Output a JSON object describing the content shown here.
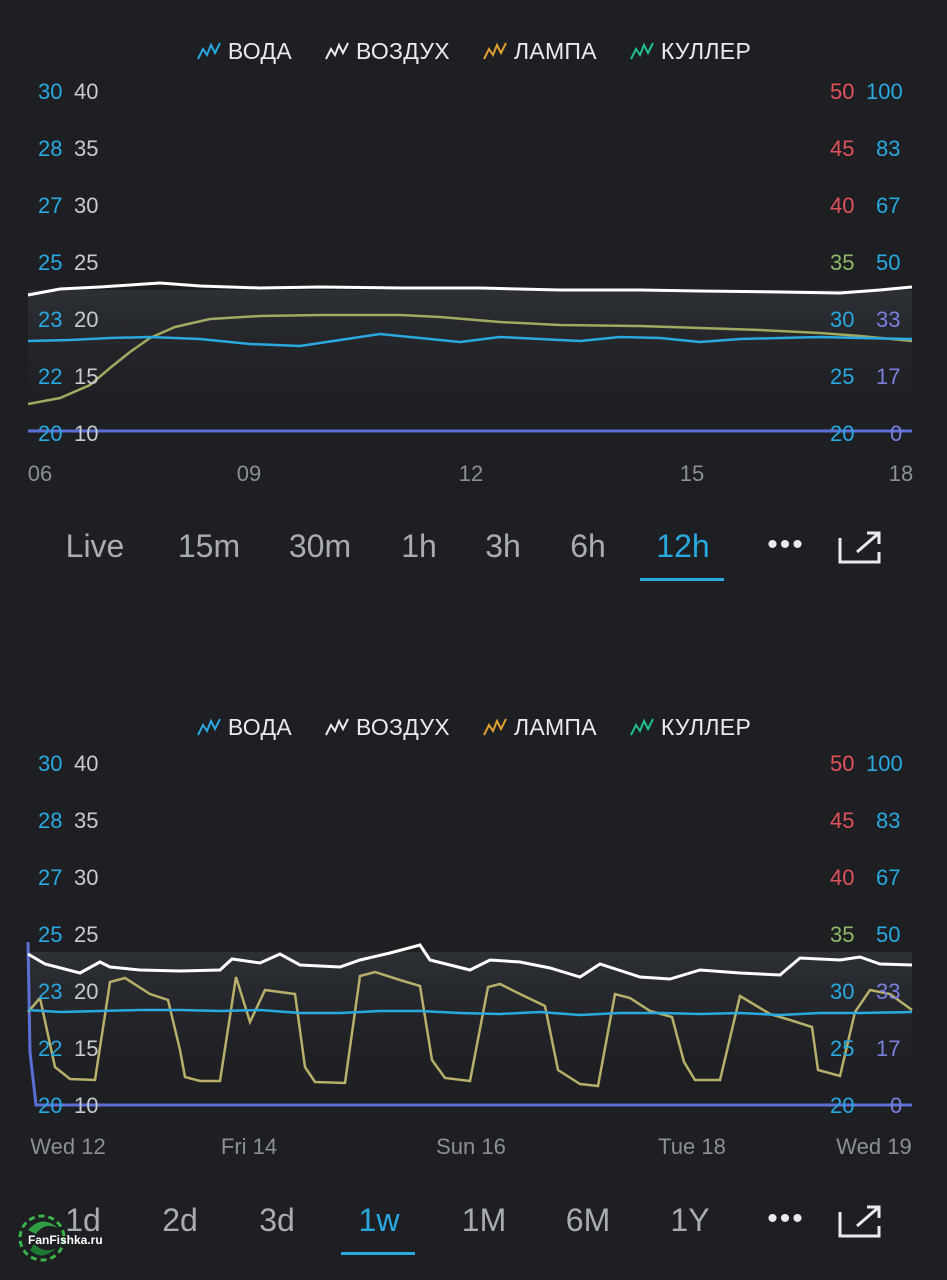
{
  "legend": [
    {
      "label": "ВОДА",
      "color": "#29a9e0",
      "icon": "chart-line-icon"
    },
    {
      "label": "ВОЗДУХ",
      "color": "#e8eaed",
      "icon": "chart-line-icon"
    },
    {
      "label": "ЛАМПА",
      "color": "#e0a030",
      "icon": "chart-line-icon"
    },
    {
      "label": "КУЛЛЕР",
      "color": "#1fbf8f",
      "icon": "chart-line-icon"
    }
  ],
  "axes": {
    "left_water": [
      "30",
      "28",
      "27",
      "25",
      "23",
      "22",
      "20"
    ],
    "left_air": [
      "40",
      "35",
      "30",
      "25",
      "20",
      "15",
      "10"
    ],
    "right_lamp": [
      "50",
      "45",
      "40",
      "35",
      "30",
      "25",
      "20"
    ],
    "right_cooler": [
      "100",
      "83",
      "67",
      "50",
      "33",
      "17",
      "0"
    ]
  },
  "top_chart": {
    "x_labels": [
      "06",
      "09",
      "12",
      "15",
      "18"
    ],
    "ranges": [
      "Live",
      "15m",
      "30m",
      "1h",
      "3h",
      "6h",
      "12h"
    ],
    "active_range": "12h"
  },
  "bottom_chart": {
    "x_labels": [
      "Wed 12",
      "Fri 14",
      "Sun 16",
      "Tue 18",
      "Wed 19"
    ],
    "ranges": [
      "1d",
      "2d",
      "3d",
      "1w",
      "1M",
      "6M",
      "1Y"
    ],
    "active_range": "1w"
  },
  "more_icon": "more-horizontal-icon",
  "expand_icon": "external-open-icon",
  "logo": {
    "text": "FanFishka.ru"
  },
  "colors": {
    "background": "#1d1f23",
    "accent": "#29a9e0",
    "water": "#29a9e0",
    "air": "#ffffff",
    "lamp": "#c8b45a",
    "cooler": "#5b6fd6"
  }
}
